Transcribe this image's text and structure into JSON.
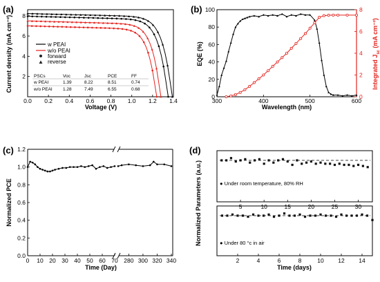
{
  "chart_data": [
    {
      "panel": "(a)",
      "type": "line",
      "xlabel": "Voltage (V)",
      "ylabel": "Current density (mA cm⁻²)",
      "xlim": [
        0.0,
        1.4
      ],
      "ylim": [
        0,
        8.6
      ],
      "xticks": [
        "0.0",
        "0.2",
        "0.4",
        "0.6",
        "0.8",
        "1.0",
        "1.2",
        "1.4"
      ],
      "yticks": [
        "2",
        "4",
        "6",
        "8"
      ],
      "legend": {
        "placement": "center-left",
        "entries": [
          {
            "name": "w PEAI",
            "color": "#000000"
          },
          {
            "name": "w/o PEAI",
            "color": "#e4231e"
          },
          {
            "name": "forward",
            "marker": "circle"
          },
          {
            "name": "reverse",
            "marker": "triangle"
          }
        ]
      },
      "table": {
        "headers": [
          "PSCs",
          "Voc",
          "Jsc",
          "PCE",
          "FF"
        ],
        "rows": [
          [
            "w PEAI",
            "1.39",
            "8.22",
            "8.51",
            "0.74"
          ],
          [
            "w/o PEAI",
            "1.28",
            "7.49",
            "6.55",
            "0.68"
          ]
        ]
      },
      "series": [
        {
          "name": "w PEAI",
          "scan": "reverse",
          "color": "#000000",
          "jsc": 8.22,
          "voc": 1.39
        },
        {
          "name": "w PEAI",
          "scan": "forward",
          "color": "#000000",
          "jsc": 7.95,
          "voc": 1.35
        },
        {
          "name": "w/o PEAI",
          "scan": "reverse",
          "color": "#e4231e",
          "jsc": 7.49,
          "voc": 1.28
        },
        {
          "name": "w/o PEAI",
          "scan": "forward",
          "color": "#e4231e",
          "jsc": 7.0,
          "voc": 1.24
        }
      ]
    },
    {
      "panel": "(b)",
      "type": "line",
      "xlabel": "Wavelength (nm)",
      "ylabel": "EQE (%)",
      "y2label": "Integrated J",
      "y2label_sub": "sc",
      "y2label_unit": " (mA cm⁻²)",
      "xlim": [
        300,
        600
      ],
      "ylim": [
        0,
        100
      ],
      "y2lim": [
        0,
        8
      ],
      "xticks": [
        "300",
        "400",
        "500",
        "600"
      ],
      "yticks": [
        "0",
        "20",
        "40",
        "60",
        "80",
        "100"
      ],
      "y2ticks": [
        "0",
        "2",
        "4",
        "6",
        "8"
      ],
      "y2color": "#e4231e",
      "series": [
        {
          "name": "EQE",
          "axis": "left",
          "color": "#000000",
          "x": [
            300,
            305,
            310,
            315,
            320,
            325,
            330,
            335,
            340,
            345,
            350,
            355,
            360,
            365,
            370,
            380,
            390,
            400,
            410,
            420,
            430,
            440,
            450,
            460,
            470,
            480,
            490,
            500,
            510,
            515,
            520,
            525,
            530,
            535,
            540,
            545,
            550,
            560,
            570,
            580,
            590,
            600
          ],
          "y": [
            2,
            12,
            25,
            33,
            41,
            52,
            62,
            72,
            80,
            84,
            87,
            89,
            90,
            91,
            92,
            93,
            92,
            94,
            93,
            94,
            93,
            95,
            92,
            94,
            93,
            95,
            94,
            94,
            88,
            78,
            62,
            42,
            25,
            12,
            5,
            3,
            2,
            2,
            1,
            2,
            1,
            2
          ]
        },
        {
          "name": "Integrated Jsc",
          "axis": "right",
          "color": "#e4231e",
          "x": [
            320,
            330,
            340,
            350,
            360,
            370,
            380,
            390,
            400,
            410,
            420,
            430,
            440,
            450,
            460,
            470,
            480,
            490,
            500,
            510,
            520,
            530,
            540,
            550,
            560,
            580,
            600
          ],
          "y": [
            0,
            0.08,
            0.2,
            0.4,
            0.65,
            0.95,
            1.3,
            1.65,
            2.0,
            2.4,
            2.8,
            3.2,
            3.6,
            4.0,
            4.45,
            4.9,
            5.35,
            5.8,
            6.3,
            6.8,
            7.3,
            7.45,
            7.49,
            7.5,
            7.5,
            7.5,
            7.5
          ]
        }
      ]
    },
    {
      "panel": "(c)",
      "type": "line",
      "xlabel": "Time (Day)",
      "ylabel": "Normalized PCE",
      "ylim": [
        0.0,
        1.2
      ],
      "yticks": [
        "0.0",
        "0.2",
        "0.4",
        "0.6",
        "0.8",
        "1.0",
        "1.2"
      ],
      "xticks_left": [
        "0",
        "10",
        "20",
        "30",
        "40",
        "50",
        "60",
        "70"
      ],
      "xticks_right": [
        "280",
        "300",
        "320",
        "340"
      ],
      "axis_break": true,
      "series": [
        {
          "name": "Normalized PCE",
          "color": "#000000",
          "x_left": [
            0,
            2,
            4,
            6,
            8,
            10,
            12,
            14,
            16,
            18,
            20,
            22,
            25,
            28,
            31,
            34,
            37,
            40,
            43,
            46,
            49,
            52,
            55,
            58,
            61,
            64,
            67,
            70
          ],
          "y_left": [
            1.0,
            1.06,
            1.05,
            1.03,
            1.0,
            0.98,
            0.97,
            0.96,
            0.95,
            0.95,
            0.96,
            0.97,
            0.98,
            0.99,
            0.99,
            1.0,
            1.0,
            1.0,
            1.01,
            1.0,
            1.01,
            1.02,
            0.98,
            1.0,
            1.01,
            0.99,
            1.0,
            1.01
          ],
          "x_right": [
            265,
            270,
            280,
            290,
            300,
            310,
            315,
            320,
            330,
            340
          ],
          "y_right": [
            1.01,
            1.02,
            1.03,
            1.02,
            1.01,
            1.02,
            1.06,
            1.03,
            1.03,
            1.01
          ]
        }
      ]
    },
    {
      "panel": "(d)",
      "type": "scatter",
      "ylabel": "Normalized Parameters (a.u.)",
      "subplots": [
        {
          "annotation": "Under room temperature, 80% RH",
          "xlim": [
            0,
            33
          ],
          "xticks": [
            "5",
            "10",
            "15",
            "20",
            "25",
            "30"
          ],
          "x": [
            1,
            2,
            3,
            4,
            5,
            6,
            7,
            8,
            9,
            10,
            11,
            12,
            13,
            14,
            15,
            16,
            17,
            18,
            19,
            20,
            21,
            22,
            23,
            24,
            25,
            26,
            27,
            28,
            29,
            30,
            31,
            32
          ],
          "y": [
            1.0,
            1.0,
            1.02,
            0.99,
            1.0,
            1.01,
            0.98,
            1.0,
            1.01,
            0.97,
            1.0,
            0.98,
            1.0,
            1.01,
            0.99,
            0.96,
            1.0,
            0.97,
            0.98,
            0.99,
            0.97,
            0.98,
            0.97,
            0.97,
            0.96,
            0.97,
            0.96,
            0.96,
            0.95,
            0.96,
            0.95,
            0.94
          ]
        },
        {
          "annotation": "Under 80 °c in air",
          "xlabel": "Time (days)",
          "xlim": [
            0,
            15
          ],
          "xticks": [
            "2",
            "4",
            "6",
            "8",
            "10",
            "12",
            "14"
          ],
          "x": [
            0.5,
            1,
            1.5,
            2,
            2.5,
            3,
            3.5,
            4,
            4.5,
            5,
            5.5,
            6,
            6.5,
            7,
            7.5,
            8,
            8.5,
            9,
            9.5,
            10,
            10.5,
            11,
            11.5,
            12,
            12.5,
            13,
            13.5,
            14,
            14.5,
            15
          ],
          "y": [
            1.0,
            1.0,
            1.01,
            1.0,
            1.0,
            0.99,
            1.01,
            1.0,
            1.0,
            1.01,
            0.99,
            1.0,
            1.02,
            1.0,
            1.0,
            1.01,
            0.99,
            1.0,
            1.0,
            1.01,
            1.0,
            1.0,
            0.99,
            1.01,
            1.0,
            1.0,
            1.0,
            1.01,
            1.0,
            0.96
          ]
        }
      ]
    }
  ]
}
